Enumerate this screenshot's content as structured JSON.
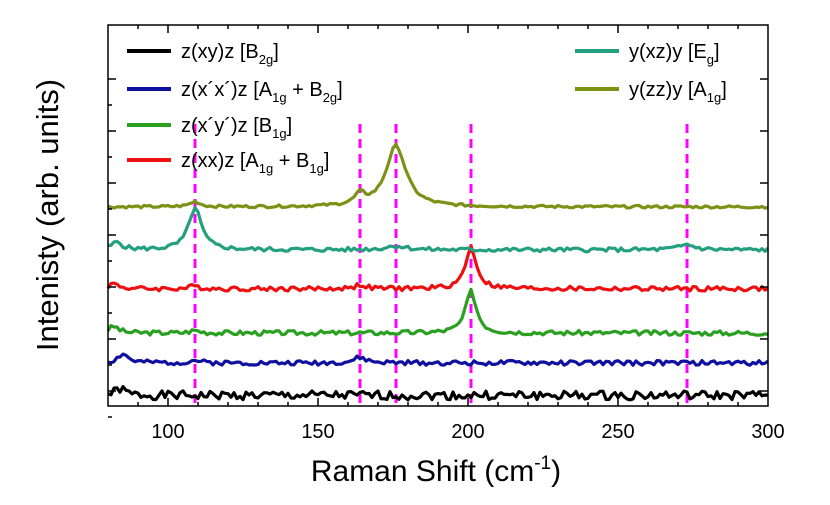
{
  "chart_data": {
    "type": "line",
    "title": "",
    "xlabel": "Raman Shift (cm",
    "xlabel_sup": "-1",
    "xlabel_tail": ")",
    "ylabel": "Intenisty (arb. units)",
    "xlim": [
      80,
      300
    ],
    "ylim": [
      0,
      10
    ],
    "xticks": [
      100,
      150,
      200,
      250,
      300
    ],
    "xtick_labels": [
      "100",
      "150",
      "200",
      "250",
      "300"
    ],
    "grid": false,
    "legend_placement": "top",
    "reference_lines": [
      {
        "x": 109,
        "color": "#ff00ff"
      },
      {
        "x": 164,
        "color": "#ff00ff"
      },
      {
        "x": 176,
        "color": "#ff00ff"
      },
      {
        "x": 201,
        "color": "#ff00ff"
      },
      {
        "x": 273,
        "color": "#ff00ff"
      }
    ],
    "series": [
      {
        "name": "z(xy)z [B2g]",
        "color": "#000000",
        "baseline": 0.1,
        "noise": 0.17,
        "seed": 1,
        "peaks": [
          {
            "center": 84,
            "amp": 0.25,
            "width": 2
          }
        ],
        "legend": {
          "main": "z(xy)z   [B",
          "sub1": "2g",
          "mid": "",
          "sub2": "",
          "tail": "]"
        }
      },
      {
        "name": "z(x'x')z [A1g + B2g]",
        "color": "#1010a0",
        "baseline": 1.35,
        "noise": 0.09,
        "seed": 2,
        "peaks": [
          {
            "center": 85,
            "amp": 0.35,
            "width": 2
          },
          {
            "center": 109,
            "amp": 0.1,
            "width": 2
          },
          {
            "center": 164,
            "amp": 0.2,
            "width": 2.5
          }
        ],
        "legend": {
          "main": "z(x´x´)z [A",
          "sub1": "1g",
          "mid": " + B",
          "sub2": "2g",
          "tail": "]"
        }
      },
      {
        "name": "z(x'y')z [B1g]",
        "color": "#2aa020",
        "baseline": 2.5,
        "noise": 0.09,
        "seed": 3,
        "peaks": [
          {
            "center": 82,
            "amp": 0.25,
            "width": 2
          },
          {
            "center": 109,
            "amp": 0.1,
            "width": 2
          },
          {
            "center": 201,
            "amp": 1.6,
            "width": 2.2
          }
        ],
        "legend": {
          "main": "z(x´y´)z [B",
          "sub1": "1g",
          "mid": "",
          "sub2": "",
          "tail": "]"
        }
      },
      {
        "name": "z(xx)z [A1g + B1g]",
        "color": "#ee1010",
        "baseline": 4.2,
        "noise": 0.09,
        "seed": 4,
        "peaks": [
          {
            "center": 82,
            "amp": 0.2,
            "width": 2
          },
          {
            "center": 109,
            "amp": 0.1,
            "width": 2
          },
          {
            "center": 164,
            "amp": 0.15,
            "width": 2
          },
          {
            "center": 201,
            "amp": 1.6,
            "width": 2.2
          }
        ],
        "legend": {
          "main": "z(xx)z   [A",
          "sub1": "1g",
          "mid": " + B",
          "sub2": "1g",
          "tail": "]"
        }
      },
      {
        "name": "y(xz)y [Eg]",
        "color": "#24a080",
        "baseline": 5.7,
        "noise": 0.08,
        "seed": 5,
        "peaks": [
          {
            "center": 83,
            "amp": 0.3,
            "width": 2
          },
          {
            "center": 109,
            "amp": 1.6,
            "width": 2.6
          },
          {
            "center": 176,
            "amp": 0.15,
            "width": 4
          },
          {
            "center": 273,
            "amp": 0.2,
            "width": 3
          }
        ],
        "legend": {
          "main": "y(xz)y   [E",
          "sub1": "g",
          "mid": "",
          "sub2": "",
          "tail": "]"
        }
      },
      {
        "name": "y(zz)y [A1g]",
        "color": "#7c9216",
        "baseline": 7.35,
        "noise": 0.05,
        "seed": 6,
        "peaks": [
          {
            "center": 109,
            "amp": 0.2,
            "width": 2
          },
          {
            "center": 164,
            "amp": 0.4,
            "width": 2
          },
          {
            "center": 176,
            "amp": 2.35,
            "width": 4
          }
        ],
        "legend": {
          "main": "y(zz)y   [A",
          "sub1": "1g",
          "mid": "",
          "sub2": "",
          "tail": "]"
        }
      }
    ]
  }
}
